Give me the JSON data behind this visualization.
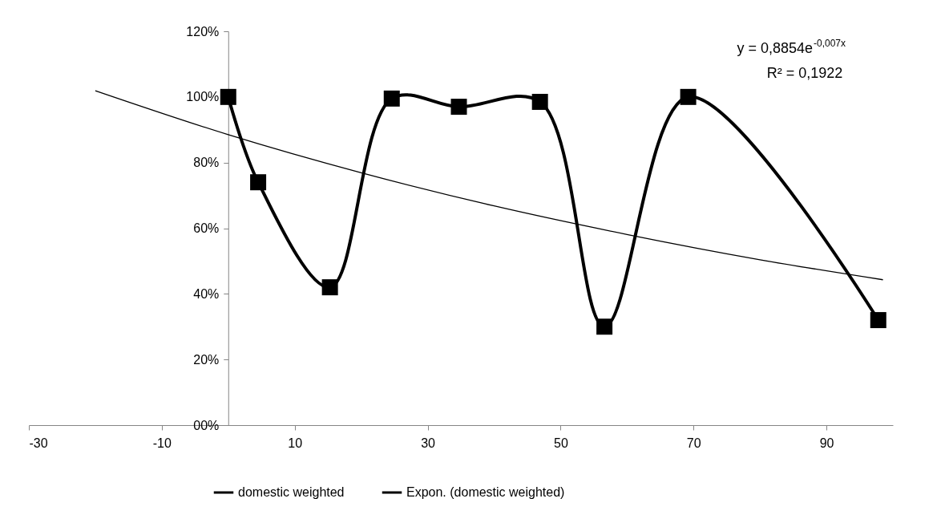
{
  "chart_data": {
    "type": "line",
    "xlim": [
      -30,
      100
    ],
    "xticks": [
      -30,
      -10,
      10,
      30,
      50,
      70,
      90
    ],
    "ylim": [
      0,
      120
    ],
    "yticks": [
      {
        "value": 0,
        "label": "00%"
      },
      {
        "value": 20,
        "label": "20%"
      },
      {
        "value": 40,
        "label": "40%"
      },
      {
        "value": 60,
        "label": "60%"
      },
      {
        "value": 80,
        "label": "80%"
      },
      {
        "value": 100,
        "label": "100%"
      },
      {
        "value": 120,
        "label": "120%"
      }
    ],
    "legend": "bottom",
    "grid": false,
    "series": [
      {
        "name": "domestic weighted",
        "color": "#000000",
        "marker": "square",
        "x": [
          0,
          4.5,
          15.3,
          24.6,
          34.7,
          46.9,
          56.6,
          69.2,
          97.8
        ],
        "values": [
          100,
          74,
          42,
          99.5,
          97,
          98.5,
          30,
          100,
          32
        ]
      },
      {
        "name": "Expon. (domestic weighted)",
        "color": "#000000",
        "marker": "none",
        "x": [
          -20,
          0,
          20,
          40,
          60,
          80,
          98.5
        ],
        "values": [
          101.9,
          88.5,
          76.9,
          66.8,
          58.1,
          50.4,
          44.3
        ]
      }
    ],
    "annotations": [
      "y = 0,8854e$^{-0,007x}$",
      "R² = 0,1922"
    ]
  }
}
